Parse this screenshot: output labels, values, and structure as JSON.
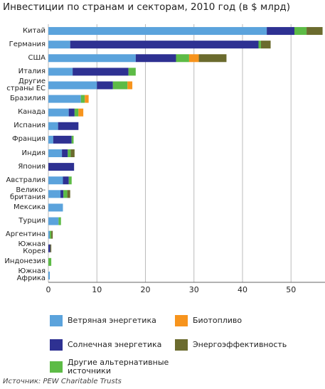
{
  "chart_data": {
    "type": "stacked-bar-horizontal",
    "title": "Инвестиции по странам и секторам, 2010 год (в $ млрд)",
    "source": "Источник: PEW Charitable Trusts",
    "categories": [
      "Китай",
      "Германия",
      "США",
      "Италия",
      "Другие\nстраны ЕС",
      "Бразилия",
      "Канада",
      "Испания",
      "Франция",
      "Индия",
      "Япония",
      "Австралия",
      "Велико-\nбритания",
      "Мексика",
      "Турция",
      "Аргентина",
      "Южная\nКорея",
      "Индонезия",
      "Южная\nАфрика"
    ],
    "series": [
      {
        "name": "Ветряная энергетика",
        "color": "#5ba3dc",
        "values": [
          45,
          4.5,
          18,
          5,
          10,
          6.7,
          4.2,
          2,
          1,
          2.8,
          0,
          3,
          2.5,
          3,
          2.1,
          0.3,
          0,
          0,
          0.3
        ]
      },
      {
        "name": "Солнечная энергетика",
        "color": "#2e3192",
        "values": [
          5.7,
          38.8,
          8.3,
          11.5,
          3.3,
          0,
          1.2,
          4.2,
          3.8,
          1.2,
          5.3,
          1.2,
          0.6,
          0,
          0,
          0,
          0.4,
          0,
          0
        ]
      },
      {
        "name": "Другие альтернативные\nисточники",
        "color": "#5dbb46",
        "values": [
          2.5,
          0.5,
          2.7,
          1.5,
          3,
          0.8,
          0.8,
          0,
          0.4,
          0.6,
          0,
          0.6,
          0.8,
          0,
          0.5,
          0.3,
          0,
          0.6,
          0
        ]
      },
      {
        "name": "Биотопливо",
        "color": "#f7941d",
        "values": [
          0,
          0,
          2,
          0,
          1,
          0.8,
          1,
          0,
          0,
          0,
          0,
          0,
          0,
          0,
          0,
          0,
          0,
          0,
          0
        ]
      },
      {
        "name": "Энергоэффективность",
        "color": "#6b6b2e",
        "values": [
          3.3,
          2,
          5.7,
          0,
          0,
          0,
          0,
          0,
          0,
          0.8,
          0,
          0,
          0.6,
          0,
          0,
          0.3,
          0.2,
          0,
          0
        ]
      }
    ],
    "xlim": [
      0,
      57
    ],
    "xticks": [
      0,
      10,
      20,
      30,
      40,
      50
    ],
    "grid": true
  }
}
